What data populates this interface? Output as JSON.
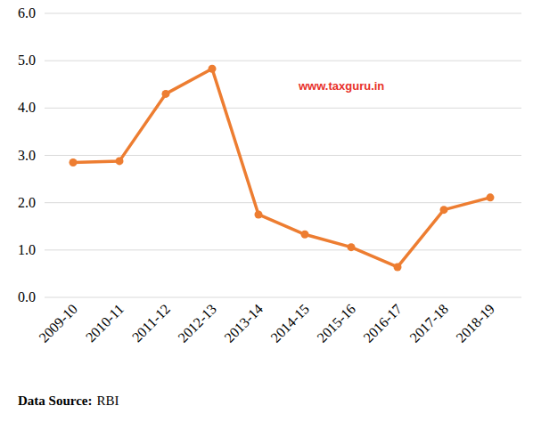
{
  "chart_data": {
    "type": "line",
    "categories": [
      "2009-10",
      "2010-11",
      "2011-12",
      "2012-13",
      "2013-14",
      "2014-15",
      "2015-16",
      "2016-17",
      "2017-18",
      "2018-19"
    ],
    "values": [
      2.85,
      2.88,
      4.3,
      4.83,
      1.75,
      1.33,
      1.06,
      0.64,
      1.85,
      2.11
    ],
    "color": "#ED7D31",
    "marker": "circle",
    "ylim": [
      0,
      6
    ],
    "yticks": [
      {
        "value": 0,
        "label": "0.0"
      },
      {
        "value": 1,
        "label": "1.0"
      },
      {
        "value": 2,
        "label": "2.0"
      },
      {
        "value": 3,
        "label": "3.0"
      },
      {
        "value": 4,
        "label": "4.0"
      },
      {
        "value": 5,
        "label": "5.0"
      },
      {
        "value": 6,
        "label": "6.0"
      }
    ],
    "grid": true,
    "annotations": [
      "www.taxguru.in",
      "Data Source:",
      "RBI"
    ]
  }
}
